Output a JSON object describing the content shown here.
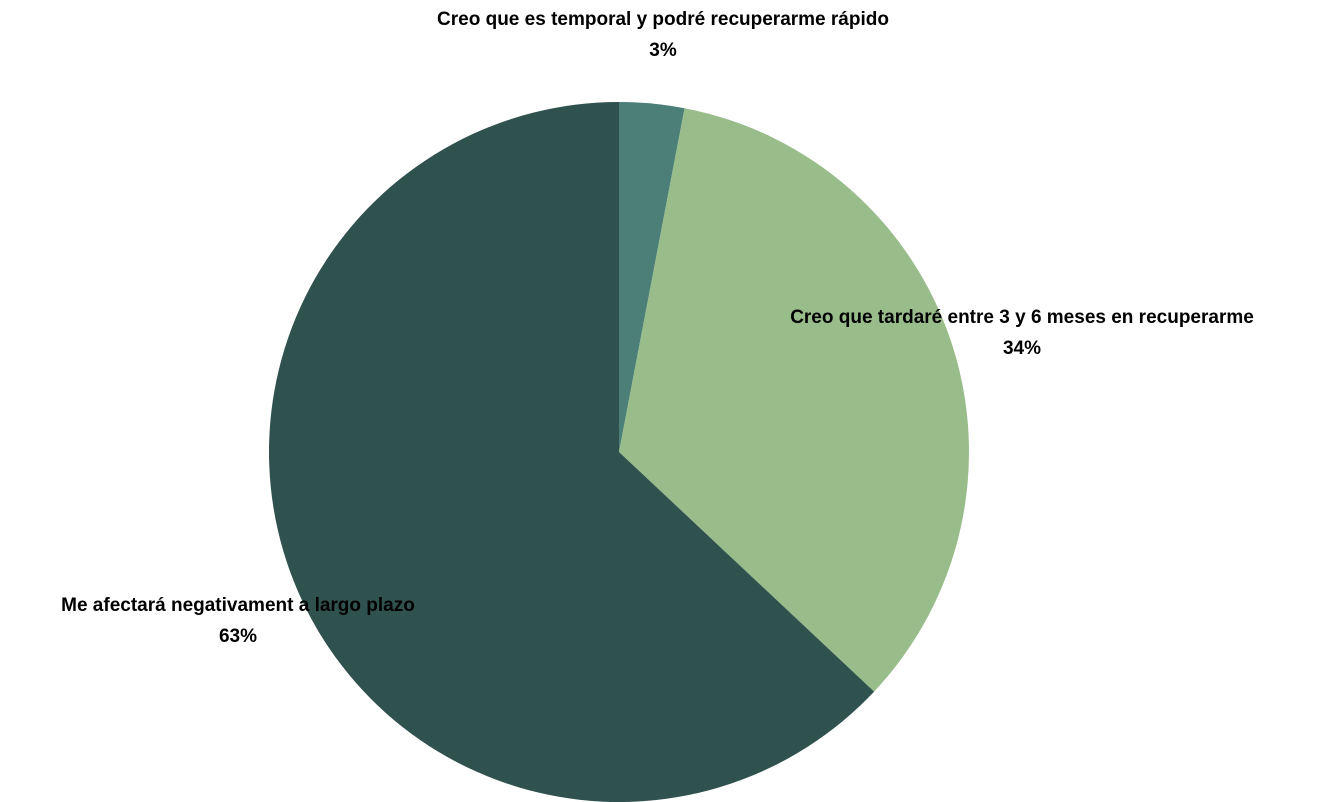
{
  "chart_data": {
    "type": "pie",
    "categories": [
      "Creo que es temporal y podré recuperarme rápido",
      "Creo que tardaré entre 3 y 6 meses en recuperarme",
      "Me afectará negativament a largo plazo"
    ],
    "values": [
      3,
      34,
      63
    ],
    "value_labels": [
      "3%",
      "34%",
      "63%"
    ],
    "colors": [
      "#4b7f78",
      "#98bd8a",
      "#30524f"
    ]
  }
}
